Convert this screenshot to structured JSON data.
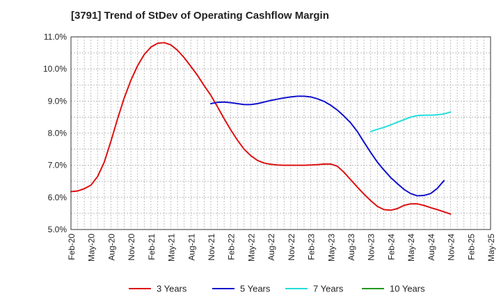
{
  "chart_data": {
    "type": "line",
    "title": "[3791]  Trend of StDev of Operating Cashflow Margin",
    "xlabel": "",
    "ylabel": "",
    "ylim": [
      5.0,
      11.0
    ],
    "xlim": [
      "2020-02",
      "2025-05"
    ],
    "grid": true,
    "legend_position": "bottom",
    "y_ticks": [
      "5.0%",
      "6.0%",
      "7.0%",
      "8.0%",
      "9.0%",
      "10.0%",
      "11.0%"
    ],
    "x_ticks": [
      "Feb-20",
      "May-20",
      "Aug-20",
      "Nov-20",
      "Feb-21",
      "May-21",
      "Aug-21",
      "Nov-21",
      "Feb-22",
      "May-22",
      "Aug-22",
      "Nov-22",
      "Feb-23",
      "May-23",
      "Aug-23",
      "Nov-23",
      "Feb-24",
      "May-24",
      "Aug-24",
      "Nov-24",
      "Feb-25",
      "May-25"
    ],
    "series": [
      {
        "name": "3 Years",
        "color": "#dd1111",
        "points": [
          [
            "2020-02",
            6.18
          ],
          [
            "2020-03",
            6.2
          ],
          [
            "2020-04",
            6.27
          ],
          [
            "2020-05",
            6.38
          ],
          [
            "2020-06",
            6.65
          ],
          [
            "2020-07",
            7.1
          ],
          [
            "2020-08",
            7.75
          ],
          [
            "2020-09",
            8.45
          ],
          [
            "2020-10",
            9.1
          ],
          [
            "2020-11",
            9.65
          ],
          [
            "2020-12",
            10.1
          ],
          [
            "2021-01",
            10.45
          ],
          [
            "2021-02",
            10.68
          ],
          [
            "2021-03",
            10.8
          ],
          [
            "2021-04",
            10.82
          ],
          [
            "2021-05",
            10.75
          ],
          [
            "2021-06",
            10.58
          ],
          [
            "2021-07",
            10.35
          ],
          [
            "2021-08",
            10.08
          ],
          [
            "2021-09",
            9.8
          ],
          [
            "2021-10",
            9.48
          ],
          [
            "2021-11",
            9.18
          ],
          [
            "2021-12",
            8.82
          ],
          [
            "2022-01",
            8.45
          ],
          [
            "2022-02",
            8.1
          ],
          [
            "2022-03",
            7.78
          ],
          [
            "2022-04",
            7.5
          ],
          [
            "2022-05",
            7.3
          ],
          [
            "2022-06",
            7.15
          ],
          [
            "2022-07",
            7.07
          ],
          [
            "2022-08",
            7.03
          ],
          [
            "2022-09",
            7.01
          ],
          [
            "2022-10",
            7.0
          ],
          [
            "2022-11",
            7.0
          ],
          [
            "2022-12",
            7.0
          ],
          [
            "2023-01",
            7.0
          ],
          [
            "2023-02",
            7.01
          ],
          [
            "2023-03",
            7.02
          ],
          [
            "2023-04",
            7.04
          ],
          [
            "2023-05",
            7.04
          ],
          [
            "2023-06",
            6.97
          ],
          [
            "2023-07",
            6.78
          ],
          [
            "2023-08",
            6.55
          ],
          [
            "2023-09",
            6.32
          ],
          [
            "2023-10",
            6.1
          ],
          [
            "2023-11",
            5.9
          ],
          [
            "2023-12",
            5.72
          ],
          [
            "2024-01",
            5.62
          ],
          [
            "2024-02",
            5.6
          ],
          [
            "2024-03",
            5.65
          ],
          [
            "2024-04",
            5.75
          ],
          [
            "2024-05",
            5.8
          ],
          [
            "2024-06",
            5.8
          ],
          [
            "2024-07",
            5.75
          ],
          [
            "2024-08",
            5.68
          ],
          [
            "2024-09",
            5.62
          ],
          [
            "2024-10",
            5.55
          ],
          [
            "2024-11",
            5.48
          ]
        ]
      },
      {
        "name": "5 Years",
        "color": "#1111cc",
        "points": [
          [
            "2021-11",
            8.92
          ],
          [
            "2021-12",
            8.96
          ],
          [
            "2022-01",
            8.97
          ],
          [
            "2022-02",
            8.95
          ],
          [
            "2022-03",
            8.92
          ],
          [
            "2022-04",
            8.89
          ],
          [
            "2022-05",
            8.89
          ],
          [
            "2022-06",
            8.92
          ],
          [
            "2022-07",
            8.97
          ],
          [
            "2022-08",
            9.02
          ],
          [
            "2022-09",
            9.06
          ],
          [
            "2022-10",
            9.1
          ],
          [
            "2022-11",
            9.13
          ],
          [
            "2022-12",
            9.15
          ],
          [
            "2023-01",
            9.15
          ],
          [
            "2023-02",
            9.13
          ],
          [
            "2023-03",
            9.07
          ],
          [
            "2023-04",
            8.99
          ],
          [
            "2023-05",
            8.87
          ],
          [
            "2023-06",
            8.72
          ],
          [
            "2023-07",
            8.53
          ],
          [
            "2023-08",
            8.32
          ],
          [
            "2023-09",
            8.05
          ],
          [
            "2023-10",
            7.72
          ],
          [
            "2023-11",
            7.4
          ],
          [
            "2023-12",
            7.1
          ],
          [
            "2024-01",
            6.85
          ],
          [
            "2024-02",
            6.62
          ],
          [
            "2024-03",
            6.43
          ],
          [
            "2024-04",
            6.25
          ],
          [
            "2024-05",
            6.12
          ],
          [
            "2024-06",
            6.05
          ],
          [
            "2024-07",
            6.06
          ],
          [
            "2024-08",
            6.12
          ],
          [
            "2024-09",
            6.28
          ],
          [
            "2024-10",
            6.52
          ]
        ]
      },
      {
        "name": "7 Years",
        "color": "#22dddd",
        "points": [
          [
            "2023-11",
            8.05
          ],
          [
            "2023-12",
            8.12
          ],
          [
            "2024-01",
            8.18
          ],
          [
            "2024-02",
            8.26
          ],
          [
            "2024-03",
            8.34
          ],
          [
            "2024-04",
            8.42
          ],
          [
            "2024-05",
            8.5
          ],
          [
            "2024-06",
            8.55
          ],
          [
            "2024-07",
            8.56
          ],
          [
            "2024-08",
            8.56
          ],
          [
            "2024-09",
            8.57
          ],
          [
            "2024-10",
            8.6
          ],
          [
            "2024-11",
            8.66
          ]
        ]
      },
      {
        "name": "10 Years",
        "color": "#229922",
        "points": []
      }
    ]
  }
}
